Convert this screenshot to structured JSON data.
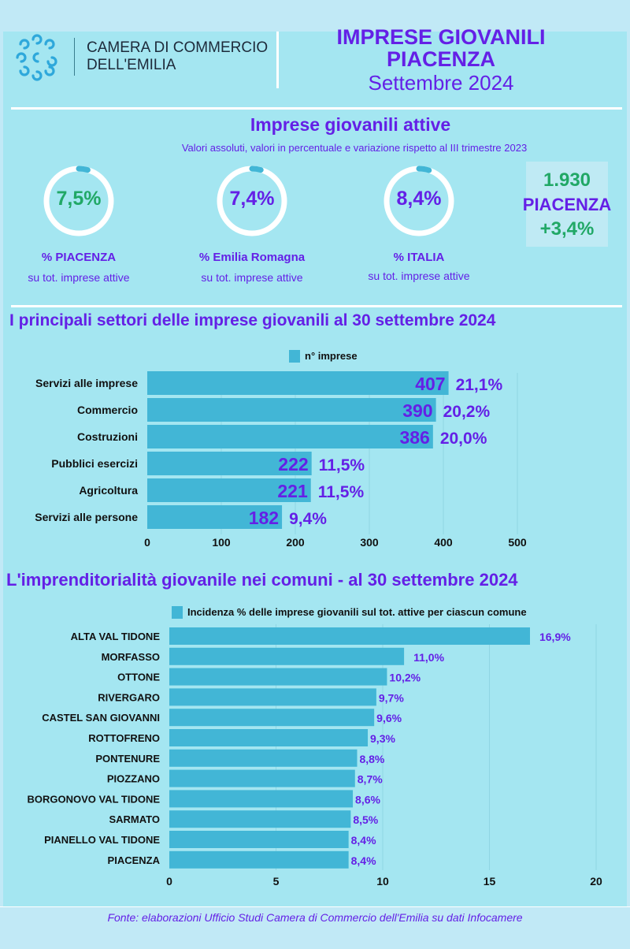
{
  "header": {
    "org_line1": "CAMERA DI COMMERCIO",
    "org_line2": "DELL'EMILIA",
    "title1": "IMPRESE GIOVANILI",
    "title2": "PIACENZA",
    "subtitle": "Settembre 2024"
  },
  "kpi": {
    "title": "Imprese giovanili attive",
    "subtitle": "Valori assoluti, valori in percentuale e variazione rispetto al III trimestre 2023",
    "donuts": [
      {
        "value": "7,5%",
        "label": "%  PIACENZA",
        "sublabel": "su tot. imprese attive",
        "color": "#21a866",
        "fraction": 0.075
      },
      {
        "value": "7,4%",
        "label": "%  Emilia Romagna",
        "sublabel": "su tot. imprese attive",
        "color": "#6420e6",
        "fraction": 0.074
      },
      {
        "value": "8,4%",
        "label": "%  ITALIA",
        "sublabel": "su tot. imprese attive",
        "color": "#6420e6",
        "fraction": 0.084
      }
    ],
    "box": {
      "count": "1.930",
      "name": "PIACENZA",
      "change": "+3,4%"
    }
  },
  "chart_data": [
    {
      "type": "bar",
      "orientation": "horizontal",
      "title": "I principali settori  delle imprese giovanili  al 30 settembre  2024",
      "legend": "n° imprese",
      "categories": [
        "Servizi alle imprese",
        "Commercio",
        "Costruzioni",
        "Pubblici esercizi",
        "Agricoltura",
        "Servizi alle persone"
      ],
      "values": [
        407,
        390,
        386,
        222,
        221,
        182
      ],
      "percent_labels": [
        "21,1%",
        "20,2%",
        "20,0%",
        "11,5%",
        "11,5%",
        "9,4%"
      ],
      "xlim": [
        0,
        500
      ],
      "ticks": [
        "0",
        "100",
        "200",
        "300",
        "400",
        "500"
      ],
      "tick_values": [
        0,
        100,
        200,
        300,
        400,
        500
      ],
      "grid": true
    },
    {
      "type": "bar",
      "orientation": "horizontal",
      "title": "L'imprenditorialità giovanile nei comuni  - al 30 settembre 2024",
      "legend": "Incidenza % delle imprese giovanili sul tot. attive per ciascun comune",
      "categories": [
        "ALTA VAL TIDONE",
        "MORFASSO",
        "OTTONE",
        "RIVERGARO",
        "CASTEL SAN GIOVANNI",
        "ROTTOFRENO",
        "PONTENURE",
        "PIOZZANO",
        "BORGONOVO VAL TIDONE",
        "SARMATO",
        "PIANELLO VAL TIDONE",
        "PIACENZA"
      ],
      "values": [
        16.9,
        11.0,
        10.2,
        9.7,
        9.6,
        9.3,
        8.8,
        8.7,
        8.6,
        8.5,
        8.4,
        8.4
      ],
      "value_labels": [
        "16,9%",
        "11,0%",
        "10,2%",
        "9,7%",
        "9,6%",
        "9,3%",
        "8,8%",
        "8,7%",
        "8,6%",
        "8,5%",
        "8,4%",
        "8,4%"
      ],
      "xlim": [
        0,
        20
      ],
      "ticks": [
        "0",
        "5",
        "10",
        "15",
        "20"
      ],
      "tick_values": [
        0,
        5,
        10,
        15,
        20
      ],
      "grid": true
    }
  ],
  "footer": "Fonte: elaborazioni Ufficio Studi Camera di Commercio dell'Emilia su dati Infocamere",
  "colors": {
    "bar": "#42b6d6",
    "text": "#6420e6",
    "green": "#21a866"
  }
}
